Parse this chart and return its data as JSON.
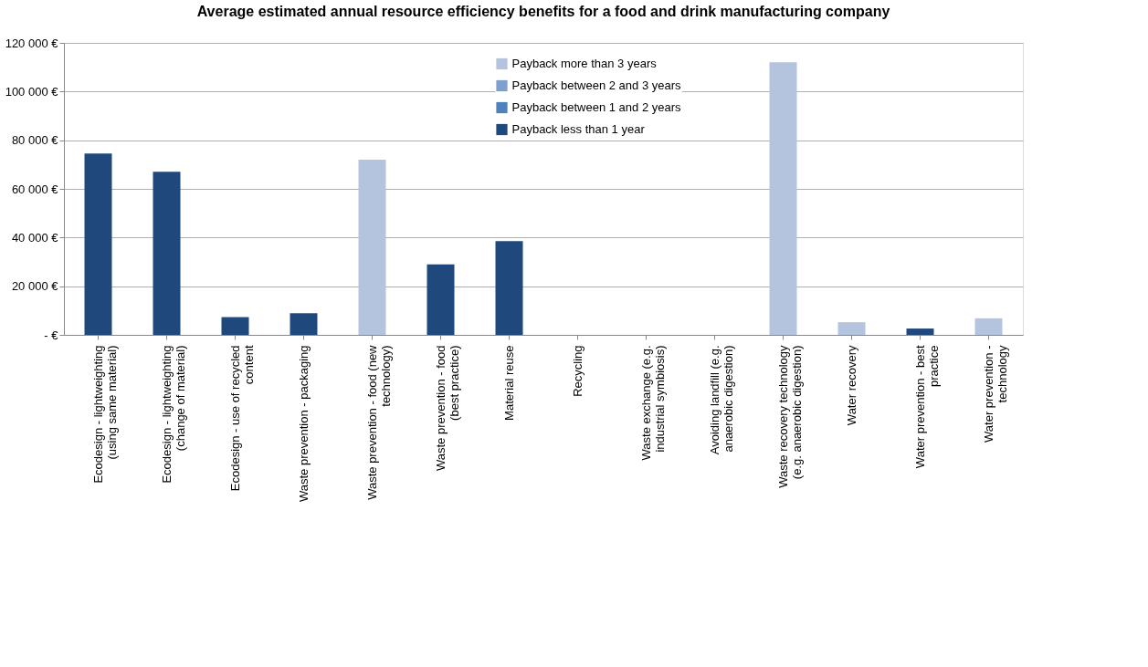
{
  "chart_data": {
    "type": "bar",
    "title": "Average estimated annual resource efficiency benefits for a food and drink manufacturing company",
    "categories": [
      "Ecodesign - lightweighting  (using same material)",
      "Ecodesign - lightweighting  (change of material)",
      "Ecodesign - use of recycled content",
      "Waste prevention - packaging",
      "Waste prevention - food (new technology)",
      "Waste prevention - food (best practice)",
      "Material reuse",
      "Recycling",
      "Waste exchange (e.g. industrial symbiosis)",
      "Avoiding landfill (e.g. anaerobic digestion)",
      "Waste recovery technology (e.g. anaerobic digestion)",
      "Water recovery",
      "Water prevention - best practice",
      "Water prevention - technology"
    ],
    "series": [
      {
        "name": "Payback more than 3 years",
        "color": "#b4c3de",
        "values": [
          null,
          null,
          null,
          null,
          72000,
          null,
          null,
          null,
          null,
          null,
          112000,
          5200,
          null,
          6800
        ]
      },
      {
        "name": "Payback between 2 and 3 years",
        "color": "#7f9fcf",
        "values": [
          null,
          null,
          null,
          null,
          null,
          null,
          null,
          null,
          null,
          null,
          null,
          null,
          null,
          null
        ]
      },
      {
        "name": "Payback between 1 and 2 years",
        "color": "#4f81bd",
        "values": [
          null,
          null,
          null,
          null,
          null,
          null,
          null,
          null,
          null,
          null,
          null,
          null,
          null,
          null
        ]
      },
      {
        "name": "Payback less than 1 year",
        "color": "#1f497d",
        "values": [
          74500,
          67000,
          7300,
          8900,
          null,
          29000,
          38500,
          null,
          null,
          null,
          null,
          null,
          2600,
          null
        ]
      }
    ],
    "ylim": [
      0,
      120000
    ],
    "yticks": [
      {
        "value": 0,
        "label": "-   €"
      },
      {
        "value": 20000,
        "label": "20 000 €"
      },
      {
        "value": 40000,
        "label": "40 000 €"
      },
      {
        "value": 60000,
        "label": "60 000 €"
      },
      {
        "value": 80000,
        "label": "80 000 €"
      },
      {
        "value": 100000,
        "label": "100 000 €"
      },
      {
        "value": 120000,
        "label": "120 000 €"
      }
    ],
    "grid": "y",
    "legend": "top"
  }
}
